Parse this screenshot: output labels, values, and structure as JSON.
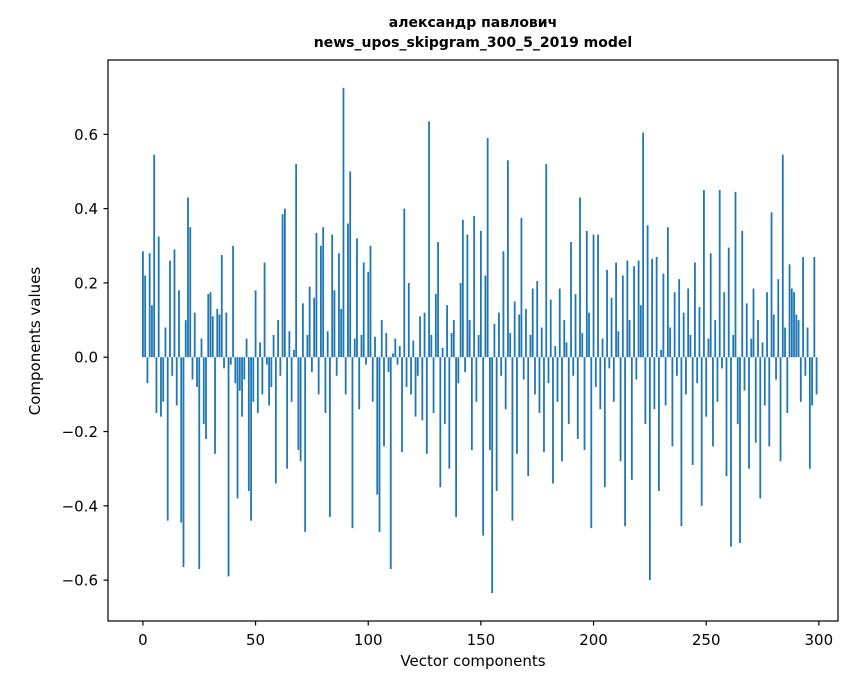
{
  "title": {
    "line1": "александр павлович",
    "line2": "news_upos_skipgram_300_5_2019 model"
  },
  "chart_data": {
    "type": "bar",
    "title": "александр павлович\nnews_upos_skipgram_300_5_2019 model",
    "xlabel": "Vector components",
    "ylabel": "Components values",
    "bar_color": "#1f77b4",
    "xlim": [
      -15.5,
      308.5
    ],
    "ylim": [
      -0.71,
      0.8
    ],
    "xticks": [
      0,
      50,
      100,
      150,
      200,
      250,
      300
    ],
    "yticks": [
      -0.6,
      -0.4,
      -0.2,
      0.0,
      0.2,
      0.4,
      0.6
    ],
    "ytick_labels": [
      "−0.6",
      "−0.4",
      "−0.2",
      "0.0",
      "0.2",
      "0.4",
      "0.6"
    ],
    "grid": false,
    "legend": "none",
    "values": [
      0.285,
      0.22,
      -0.07,
      0.28,
      0.14,
      0.545,
      -0.15,
      0.325,
      -0.16,
      -0.12,
      0.08,
      -0.44,
      0.26,
      -0.05,
      0.29,
      -0.13,
      0.18,
      -0.445,
      -0.565,
      0.1,
      0.43,
      0.35,
      -0.06,
      0.12,
      -0.08,
      -0.57,
      0.05,
      -0.18,
      -0.22,
      0.17,
      0.175,
      0.11,
      -0.26,
      0.13,
      0.115,
      0.275,
      -0.03,
      0.12,
      -0.59,
      -0.02,
      0.3,
      -0.07,
      -0.38,
      -0.09,
      -0.16,
      -0.06,
      0.05,
      -0.36,
      -0.44,
      -0.12,
      0.18,
      -0.15,
      0.04,
      -0.1,
      0.255,
      -0.02,
      -0.13,
      -0.08,
      0.06,
      -0.34,
      0.1,
      -0.05,
      0.385,
      0.4,
      -0.3,
      0.07,
      -0.12,
      0.02,
      0.52,
      -0.25,
      -0.28,
      0.145,
      -0.47,
      0.06,
      0.19,
      -0.04,
      0.16,
      0.335,
      -0.1,
      0.3,
      0.35,
      -0.15,
      0.07,
      -0.43,
      0.33,
      0.18,
      -0.05,
      0.28,
      0.13,
      0.725,
      -0.1,
      0.36,
      0.5,
      -0.46,
      0.05,
      0.32,
      -0.14,
      0.06,
      0.255,
      -0.02,
      0.23,
      0.3,
      -0.12,
      0.055,
      -0.37,
      -0.47,
      0.1,
      -0.24,
      0.065,
      -0.04,
      -0.57,
      0.01,
      0.05,
      -0.02,
      0.03,
      -0.255,
      0.4,
      -0.08,
      0.2,
      -0.1,
      0.045,
      -0.16,
      -0.05,
      0.11,
      -0.17,
      0.12,
      -0.26,
      0.635,
      0.06,
      -0.15,
      0.17,
      0.31,
      -0.35,
      0.025,
      -0.18,
      0.14,
      -0.3,
      0.065,
      0.1,
      -0.43,
      -0.07,
      0.2,
      0.37,
      -0.04,
      0.33,
      0.1,
      -0.25,
      0.38,
      -0.12,
      0.06,
      0.34,
      -0.48,
      0.22,
      0.59,
      -0.25,
      -0.635,
      0.09,
      -0.36,
      0.12,
      -0.05,
      0.285,
      -0.14,
      0.53,
      0.065,
      -0.44,
      0.15,
      -0.26,
      0.115,
      0.375,
      -0.06,
      0.13,
      -0.32,
      0.06,
      0.185,
      -0.1,
      0.205,
      -0.15,
      0.08,
      -0.255,
      0.52,
      -0.07,
      0.155,
      -0.34,
      0.03,
      -0.12,
      0.185,
      -0.28,
      0.1,
      0.04,
      -0.18,
      0.31,
      -0.05,
      0.17,
      -0.22,
      0.43,
      0.065,
      -0.25,
      0.34,
      0.12,
      -0.46,
      0.33,
      -0.08,
      0.33,
      -0.14,
      0.05,
      -0.35,
      0.235,
      -0.03,
      0.16,
      -0.12,
      0.255,
      0.07,
      -0.28,
      0.22,
      -0.455,
      0.26,
      0.1,
      -0.33,
      0.245,
      -0.06,
      0.26,
      0.14,
      0.605,
      -0.18,
      0.355,
      -0.6,
      0.265,
      -0.14,
      0.27,
      -0.36,
      0.02,
      0.225,
      -0.13,
      0.35,
      0.08,
      -0.24,
      0.175,
      -0.05,
      0.21,
      -0.455,
      0.12,
      -0.1,
      0.185,
      0.06,
      -0.29,
      0.255,
      -0.07,
      0.135,
      -0.4,
      0.45,
      -0.16,
      0.05,
      0.28,
      -0.24,
      0.1,
      -0.12,
      0.45,
      -0.03,
      0.175,
      -0.32,
      0.295,
      -0.51,
      0.06,
      0.445,
      -0.18,
      -0.5,
      0.34,
      -0.09,
      0.145,
      -0.3,
      0.05,
      0.185,
      -0.23,
      0.1,
      -0.38,
      0.04,
      -0.13,
      0.175,
      -0.24,
      0.39,
      0.115,
      -0.06,
      0.21,
      -0.28,
      0.545,
      0.08,
      -0.15,
      0.25,
      0.185,
      0.175,
      0.115,
      0.1,
      -0.12,
      0.27,
      -0.05,
      0.08,
      -0.3,
      -0.13,
      0.27,
      -0.1
    ]
  }
}
